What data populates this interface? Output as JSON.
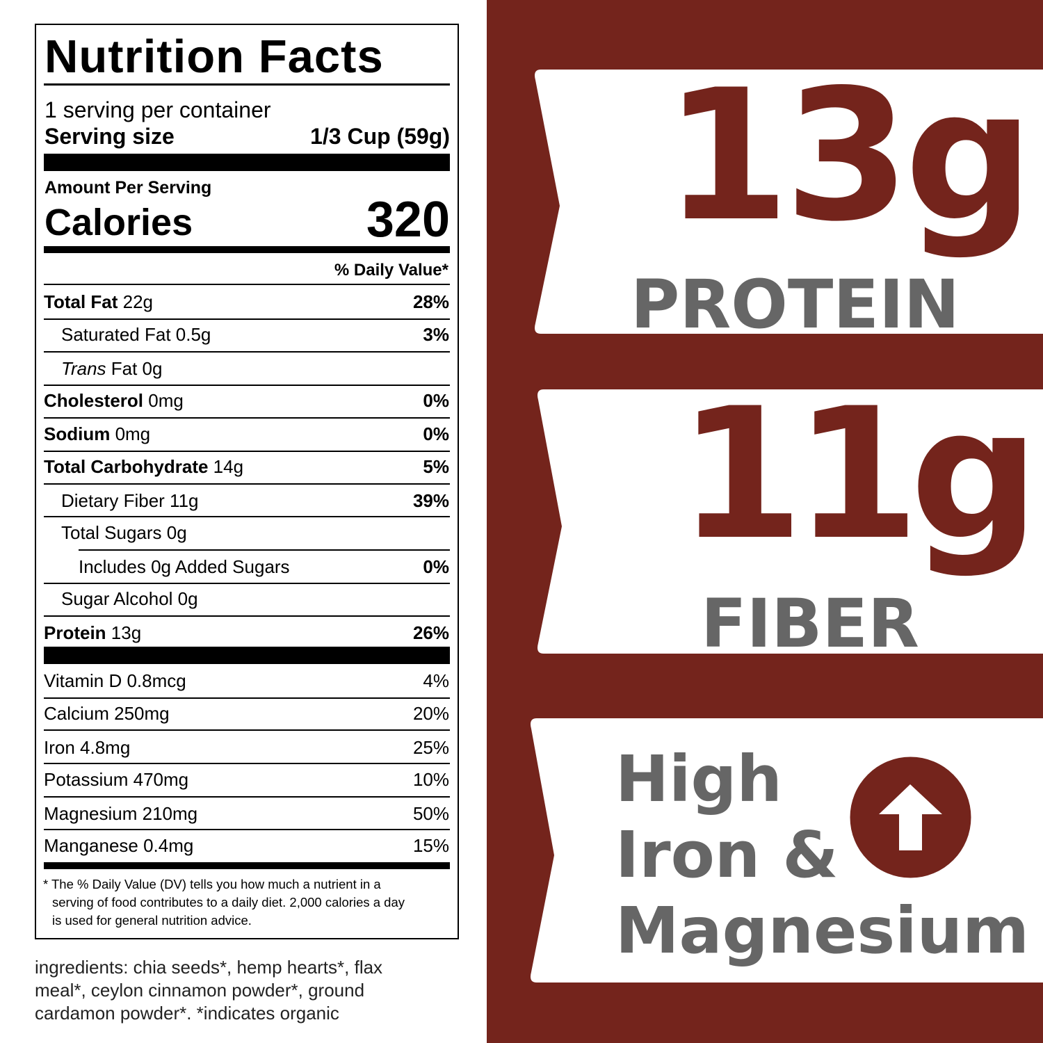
{
  "label": {
    "title": "Nutrition Facts",
    "servings": "1 serving per container",
    "serving_size_label": "Serving size",
    "serving_size_value": "1/3 Cup (59g)",
    "amount_per_serving": "Amount Per Serving",
    "calories_label": "Calories",
    "calories_value": "320",
    "daily_value_header": "% Daily Value*",
    "rows": [
      {
        "bold": "Total Fat",
        "amount": " 22g",
        "dv": "28%",
        "indent": 0,
        "dv_bold": true
      },
      {
        "bold": "",
        "amount": "Saturated Fat 0.5g",
        "dv": "3%",
        "indent": 1,
        "dv_bold": true
      },
      {
        "italic": "Trans",
        "amount": " Fat 0g",
        "dv": "",
        "indent": 1
      },
      {
        "bold": "Cholesterol",
        "amount": " 0mg",
        "dv": "0%",
        "indent": 0,
        "dv_bold": true
      },
      {
        "bold": "Sodium",
        "amount": " 0mg",
        "dv": "0%",
        "indent": 0,
        "dv_bold": true
      },
      {
        "bold": "Total Carbohydrate",
        "amount": " 14g",
        "dv": "5%",
        "indent": 0,
        "dv_bold": true
      },
      {
        "bold": "",
        "amount": "Dietary Fiber 11g",
        "dv": "39%",
        "indent": 1,
        "dv_bold": true
      },
      {
        "bold": "",
        "amount": "Total Sugars 0g",
        "dv": "",
        "indent": 1
      },
      {
        "bold": "",
        "amount": "Includes 0g Added Sugars",
        "dv": "0%",
        "indent": 2,
        "dv_bold": true
      },
      {
        "bold": "",
        "amount": "Sugar Alcohol 0g",
        "dv": "",
        "indent": 1
      },
      {
        "bold": "Protein",
        "amount": " 13g",
        "dv": "26%",
        "indent": 0,
        "dv_bold": true
      },
      {
        "bold": "",
        "amount": "Vitamin D 0.8mcg",
        "dv": "4%",
        "indent": 0
      },
      {
        "bold": "",
        "amount": "Calcium 250mg",
        "dv": "20%",
        "indent": 0
      },
      {
        "bold": "",
        "amount": "Iron 4.8mg",
        "dv": "25%",
        "indent": 0
      },
      {
        "bold": "",
        "amount": "Potassium 470mg",
        "dv": "10%",
        "indent": 0
      },
      {
        "bold": "",
        "amount": "Magnesium 210mg",
        "dv": "50%",
        "indent": 0
      },
      {
        "bold": "",
        "amount": "Manganese 0.4mg",
        "dv": "15%",
        "indent": 0
      }
    ],
    "footnote_1": "* The % Daily Value (DV) tells you how much a nutrient in a",
    "footnote_2": "serving of food contributes to a daily diet. 2,000 calories a day",
    "footnote_3": "is used for general nutrition advice."
  },
  "ingredients": {
    "line1": "ingredients: chia seeds*, hemp hearts*, flax",
    "line2": "meal*, ceylon cinnamon powder*, ground",
    "line3": "cardamon powder*. *indicates organic"
  },
  "callouts": {
    "protein_value": "13g",
    "protein_label": "PROTEIN",
    "fiber_value": "11g",
    "fiber_label": "FIBER",
    "minerals_line1": "High",
    "minerals_line2": "Iron &",
    "minerals_line3": "Magnesium",
    "icon": "arrow-up-circle-icon"
  },
  "colors": {
    "brand": "#74241c",
    "grey": "#666666"
  }
}
